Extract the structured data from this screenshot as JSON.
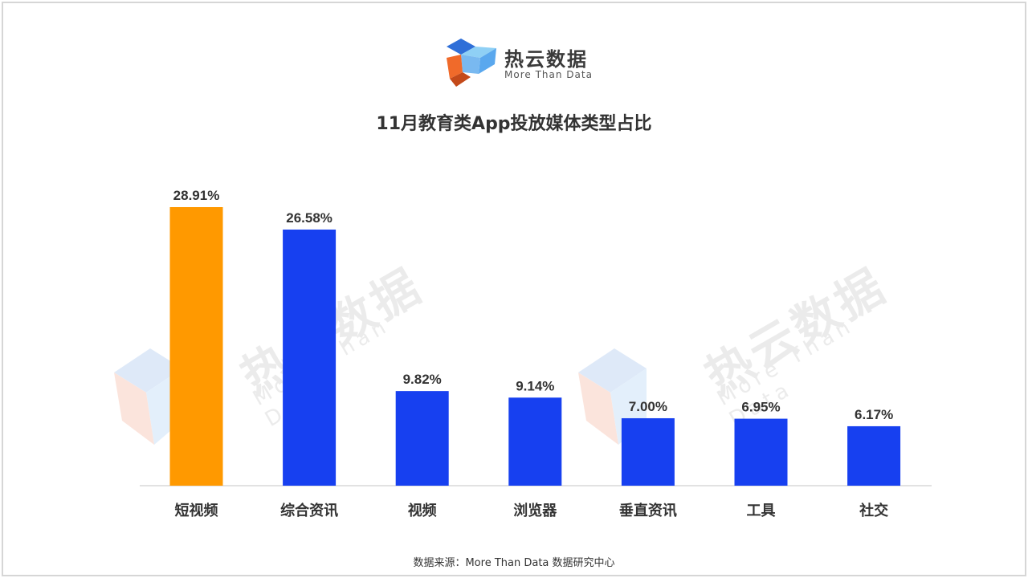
{
  "brand": {
    "name": "热云数据",
    "tagline": "More Than Data"
  },
  "title": "11月教育类App投放媒体类型占比",
  "source": "数据来源：More Than Data 数据研究中心",
  "colors": {
    "highlight": "#FF9900",
    "bar": "#1740F0",
    "axis": "#d9d9d9",
    "label": "#333333"
  },
  "chart_data": {
    "type": "bar",
    "title": "11月教育类App投放媒体类型占比",
    "xlabel": "",
    "ylabel": "",
    "categories": [
      "短视频",
      "综合资讯",
      "视频",
      "浏览器",
      "垂直资讯",
      "工具",
      "社交"
    ],
    "values": [
      28.91,
      26.58,
      9.82,
      9.14,
      7.0,
      6.95,
      6.17
    ],
    "value_labels": [
      "28.91%",
      "26.58%",
      "9.82%",
      "9.14%",
      "7.00%",
      "6.95%",
      "6.17%"
    ],
    "unit": "%",
    "highlight_index": 0,
    "ylim": [
      0,
      30
    ],
    "grid": false,
    "legend": "none"
  }
}
